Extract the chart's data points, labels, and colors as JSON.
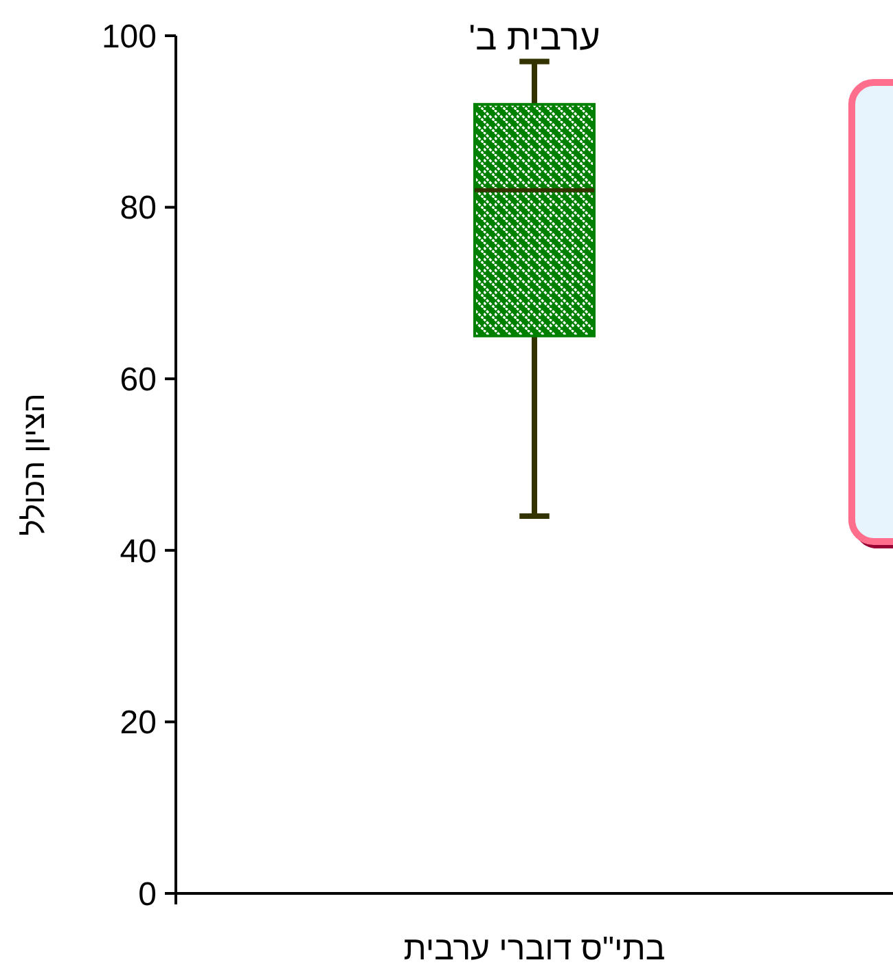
{
  "chart_data": {
    "type": "box",
    "title": "ערבית ב'",
    "ylabel": "הציון הכולל",
    "categories": [
      "בתי\"ס דוברי ערבית"
    ],
    "boxes": [
      {
        "low": 44,
        "q1": 65,
        "median": 82,
        "q3": 92,
        "high": 97
      }
    ],
    "color": "#008000",
    "ylim": [
      0,
      100
    ],
    "yticks": [
      0,
      20,
      40,
      60,
      80,
      100
    ],
    "grid": false
  }
}
